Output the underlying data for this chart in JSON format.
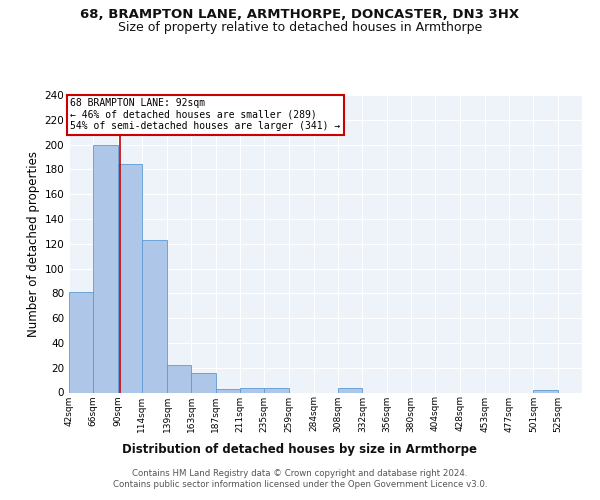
{
  "title1": "68, BRAMPTON LANE, ARMTHORPE, DONCASTER, DN3 3HX",
  "title2": "Size of property relative to detached houses in Armthorpe",
  "xlabel": "Distribution of detached houses by size in Armthorpe",
  "ylabel": "Number of detached properties",
  "bin_labels": [
    "42sqm",
    "66sqm",
    "90sqm",
    "114sqm",
    "139sqm",
    "163sqm",
    "187sqm",
    "211sqm",
    "235sqm",
    "259sqm",
    "284sqm",
    "308sqm",
    "332sqm",
    "356sqm",
    "380sqm",
    "404sqm",
    "428sqm",
    "453sqm",
    "477sqm",
    "501sqm",
    "525sqm"
  ],
  "bin_edges": [
    42,
    66,
    90,
    114,
    139,
    163,
    187,
    211,
    235,
    259,
    284,
    308,
    332,
    356,
    380,
    404,
    428,
    453,
    477,
    501,
    525,
    549
  ],
  "heights": [
    81,
    200,
    184,
    123,
    22,
    16,
    3,
    4,
    4,
    0,
    0,
    4,
    0,
    0,
    0,
    0,
    0,
    0,
    0,
    2,
    0
  ],
  "bar_color": "#aec6e8",
  "bar_edge_color": "#5b9bd5",
  "property_size": 92,
  "red_line_color": "#cc0000",
  "annotation_line1": "68 BRAMPTON LANE: 92sqm",
  "annotation_line2": "← 46% of detached houses are smaller (289)",
  "annotation_line3": "54% of semi-detached houses are larger (341) →",
  "annotation_box_color": "#ffffff",
  "annotation_box_edge_color": "#cc0000",
  "ylim": [
    0,
    240
  ],
  "yticks": [
    0,
    20,
    40,
    60,
    80,
    100,
    120,
    140,
    160,
    180,
    200,
    220,
    240
  ],
  "bg_color": "#eef2f9",
  "footer1": "Contains HM Land Registry data © Crown copyright and database right 2024.",
  "footer2": "Contains public sector information licensed under the Open Government Licence v3.0.",
  "title1_fontsize": 9.5,
  "title2_fontsize": 9,
  "xlabel_fontsize": 8.5,
  "ylabel_fontsize": 8.5,
  "grid_color": "#ffffff",
  "tick_label_fontsize": 6.5,
  "ytick_label_fontsize": 7.5
}
